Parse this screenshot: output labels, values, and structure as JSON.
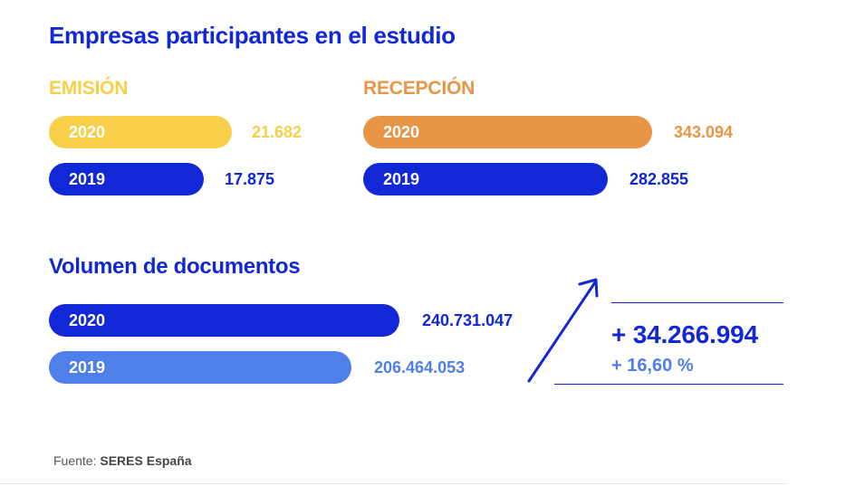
{
  "title": "Empresas participantes en el estudio",
  "emision_label": "EMISIÓN",
  "recepcion_label": "RECEPCIÓN",
  "volumen_title": "Volumen de documentos",
  "increase": {
    "absolute": "+ 34.266.994",
    "percent": "+ 16,60 %"
  },
  "source": {
    "prefix": "Fuente:",
    "name": "SERES España"
  },
  "colors": {
    "yellow": "#f7cf48",
    "orange": "#e89546",
    "dark_blue": "#1228d6",
    "light_blue": "#4f7fe8"
  },
  "chart_data": [
    {
      "type": "bar",
      "title": "EMISIÓN",
      "categories": [
        "2020",
        "2019"
      ],
      "values": [
        21682,
        17875
      ],
      "value_labels": [
        "21.682",
        "17.875"
      ]
    },
    {
      "type": "bar",
      "title": "RECEPCIÓN",
      "categories": [
        "2020",
        "2019"
      ],
      "values": [
        343094,
        282855
      ],
      "value_labels": [
        "343.094",
        "282.855"
      ]
    },
    {
      "type": "bar",
      "title": "Volumen de documentos",
      "categories": [
        "2020",
        "2019"
      ],
      "values": [
        240731047,
        206464053
      ],
      "value_labels": [
        "240.731.047",
        "206.464.053"
      ]
    }
  ]
}
